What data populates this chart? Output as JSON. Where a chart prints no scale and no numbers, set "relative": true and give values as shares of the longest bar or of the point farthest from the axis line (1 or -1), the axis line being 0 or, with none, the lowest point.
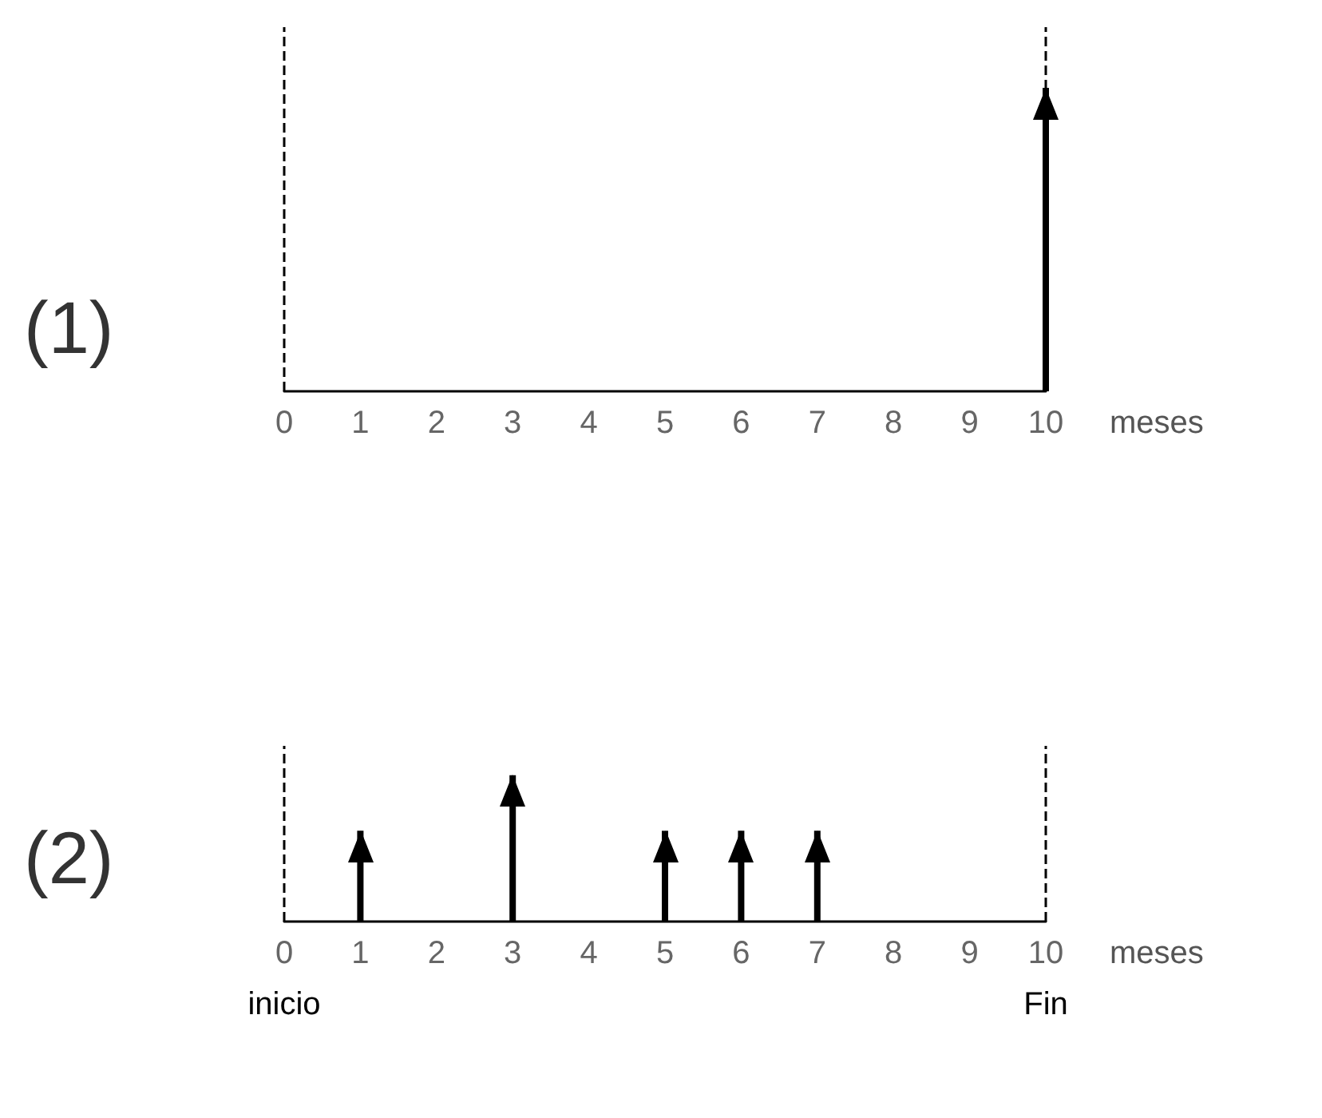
{
  "chart_data": [
    {
      "type": "bar",
      "title": "(1)",
      "relative": true,
      "categories": [
        "0",
        "1",
        "2",
        "3",
        "4",
        "5",
        "6",
        "7",
        "8",
        "9",
        "10"
      ],
      "values": [
        null,
        null,
        null,
        null,
        null,
        null,
        null,
        null,
        null,
        null,
        1
      ],
      "color": "#000000",
      "xlabel": "meses",
      "grid": false,
      "ref_lines": [
        {
          "axis": "x",
          "value": "0",
          "line_style": "dashed",
          "color": "#000000"
        },
        {
          "axis": "x",
          "value": "10",
          "line_style": "dashed",
          "color": "#000000"
        }
      ]
    },
    {
      "type": "bar",
      "title": "(2)",
      "relative": true,
      "categories": [
        "0",
        "1",
        "2",
        "3",
        "4",
        "5",
        "6",
        "7",
        "8",
        "9",
        "10"
      ],
      "values": [
        null,
        0.62,
        null,
        1,
        null,
        0.62,
        0.62,
        0.62,
        null,
        null,
        null
      ],
      "color": "#000000",
      "xlabel": "meses",
      "grid": false,
      "ref_lines": [
        {
          "axis": "x",
          "value": "0",
          "label": "inicio",
          "line_style": "dashed",
          "color": "#000000"
        },
        {
          "axis": "x",
          "value": "10",
          "label": "Fin",
          "line_style": "dashed",
          "color": "#000000"
        }
      ]
    }
  ]
}
